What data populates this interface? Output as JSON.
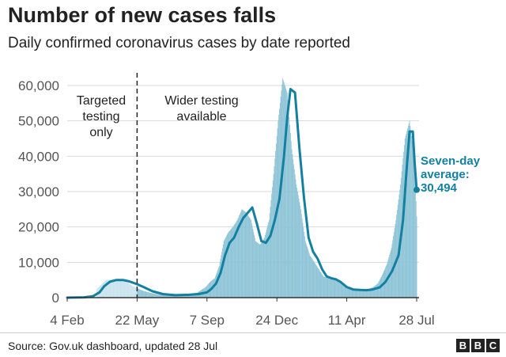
{
  "header": {
    "title": "Number of new cases falls",
    "subtitle": "Daily confirmed coronavirus cases by date reported"
  },
  "chart_data": {
    "type": "bar",
    "title": "Number of new cases falls",
    "subtitle": "Daily confirmed coronavirus cases by date reported",
    "xlabel": "",
    "ylabel": "",
    "ylim": [
      0,
      60000
    ],
    "yticks": [
      0,
      10000,
      20000,
      30000,
      40000,
      50000,
      60000
    ],
    "ytick_labels": [
      "0",
      "10,000",
      "20,000",
      "30,000",
      "40,000",
      "50,000",
      "60,000"
    ],
    "x_range": [
      "2020-02-04",
      "2021-07-28"
    ],
    "xticks": [
      "2020-02-04",
      "2020-05-22",
      "2020-09-07",
      "2020-12-24",
      "2021-04-11",
      "2021-07-28"
    ],
    "xtick_labels": [
      "4 Feb",
      "22 May",
      "7 Sep",
      "24 Dec",
      "11 Apr",
      "28 Jul"
    ],
    "grid": true,
    "series": [
      {
        "kind": "bars",
        "values_note_free": true,
        "x": [
          "2020-03-21",
          "2020-04-04",
          "2020-04-18",
          "2020-05-02",
          "2020-05-16",
          "2020-05-30",
          "2020-06-13",
          "2020-06-27",
          "2020-07-11",
          "2020-07-25",
          "2020-08-08",
          "2020-08-22",
          "2020-09-05",
          "2020-09-12",
          "2020-09-19",
          "2020-09-26",
          "2020-10-03",
          "2020-10-10",
          "2020-10-17",
          "2020-10-24",
          "2020-10-31",
          "2020-11-07",
          "2020-11-14",
          "2020-11-21",
          "2020-11-28",
          "2020-12-05",
          "2020-12-12",
          "2020-12-19",
          "2020-12-26",
          "2021-01-02",
          "2021-01-09",
          "2021-01-16",
          "2021-01-23",
          "2021-01-30",
          "2021-02-06",
          "2021-02-13",
          "2021-02-20",
          "2021-02-27",
          "2021-03-06",
          "2021-03-13",
          "2021-03-20",
          "2021-03-27",
          "2021-04-03",
          "2021-04-10",
          "2021-04-17",
          "2021-04-24",
          "2021-05-01",
          "2021-05-08",
          "2021-05-15",
          "2021-05-22",
          "2021-05-29",
          "2021-06-05",
          "2021-06-12",
          "2021-06-19",
          "2021-06-26",
          "2021-07-03",
          "2021-07-10",
          "2021-07-17",
          "2021-07-24",
          "2021-07-28"
        ],
        "y": [
          2500,
          5000,
          5200,
          4800,
          3200,
          2000,
          1300,
          800,
          700,
          800,
          1100,
          1300,
          3000,
          4500,
          5500,
          9000,
          16000,
          18500,
          20000,
          22000,
          25000,
          24000,
          22000,
          16000,
          15000,
          17000,
          22000,
          35000,
          50000,
          62000,
          58000,
          42000,
          32000,
          25000,
          16000,
          12000,
          10000,
          8000,
          6000,
          5500,
          5500,
          5000,
          4000,
          3200,
          2500,
          2300,
          2300,
          2200,
          2400,
          3000,
          4000,
          6500,
          9500,
          14000,
          22000,
          32000,
          45000,
          50000,
          40000,
          23000
        ]
      },
      {
        "name": "Seven-day average",
        "kind": "line",
        "x": [
          "2020-02-04",
          "2020-03-01",
          "2020-03-15",
          "2020-03-25",
          "2020-04-01",
          "2020-04-10",
          "2020-04-20",
          "2020-04-30",
          "2020-05-10",
          "2020-05-22",
          "2020-06-01",
          "2020-06-15",
          "2020-07-01",
          "2020-07-20",
          "2020-08-10",
          "2020-08-25",
          "2020-09-07",
          "2020-09-14",
          "2020-09-21",
          "2020-09-28",
          "2020-10-05",
          "2020-10-12",
          "2020-10-19",
          "2020-10-26",
          "2020-11-02",
          "2020-11-09",
          "2020-11-16",
          "2020-11-23",
          "2020-11-30",
          "2020-12-07",
          "2020-12-14",
          "2020-12-21",
          "2020-12-28",
          "2021-01-04",
          "2021-01-09",
          "2021-01-14",
          "2021-01-21",
          "2021-01-28",
          "2021-02-04",
          "2021-02-11",
          "2021-02-18",
          "2021-02-25",
          "2021-03-04",
          "2021-03-11",
          "2021-03-18",
          "2021-03-25",
          "2021-04-01",
          "2021-04-11",
          "2021-04-21",
          "2021-05-01",
          "2021-05-11",
          "2021-05-21",
          "2021-06-01",
          "2021-06-10",
          "2021-06-20",
          "2021-06-30",
          "2021-07-07",
          "2021-07-12",
          "2021-07-17",
          "2021-07-22",
          "2021-07-25",
          "2021-07-28"
        ],
        "y": [
          0,
          100,
          400,
          1500,
          3200,
          4500,
          5000,
          5000,
          4600,
          3800,
          3000,
          1800,
          1000,
          700,
          800,
          1000,
          1500,
          2500,
          4000,
          7000,
          12000,
          15500,
          17000,
          20000,
          22500,
          24000,
          25500,
          21000,
          16000,
          15500,
          17500,
          22000,
          28000,
          40000,
          51000,
          59000,
          58000,
          42000,
          28000,
          17000,
          13000,
          11000,
          8000,
          6000,
          5500,
          5200,
          4500,
          3000,
          2300,
          2200,
          2100,
          2300,
          2900,
          4500,
          7500,
          12000,
          22000,
          35000,
          47000,
          47000,
          38000,
          30494
        ]
      }
    ],
    "annotations": [
      {
        "type": "vline",
        "x": "2020-05-22"
      },
      {
        "text": [
          "Targeted",
          "testing",
          "only"
        ]
      },
      {
        "text": [
          "Wider testing",
          "available"
        ]
      },
      {
        "text": [
          "Seven-day",
          "average:",
          "30,494"
        ]
      }
    ],
    "colors": {
      "bars": "#8cc3d6",
      "bars_early": "#c8e3ed",
      "line": "#1380a1",
      "grid": "#d9d9d9",
      "axis": "#333333",
      "ticks": "#555555"
    }
  },
  "footer": {
    "source": "Source: Gov.uk dashboard, updated 28 Jul",
    "logo_letters": [
      "B",
      "B",
      "C"
    ]
  }
}
